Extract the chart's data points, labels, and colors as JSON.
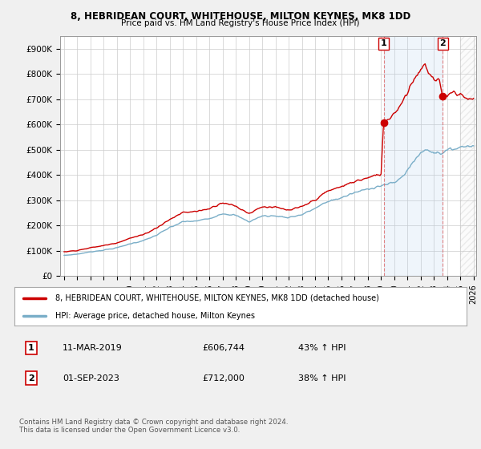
{
  "title": "8, HEBRIDEAN COURT, WHITEHOUSE, MILTON KEYNES, MK8 1DD",
  "subtitle": "Price paid vs. HM Land Registry's House Price Index (HPI)",
  "ylim": [
    0,
    950000
  ],
  "yticks": [
    0,
    100000,
    200000,
    300000,
    400000,
    500000,
    600000,
    700000,
    800000,
    900000
  ],
  "ytick_labels": [
    "£0",
    "£100K",
    "£200K",
    "£300K",
    "£400K",
    "£500K",
    "£600K",
    "£700K",
    "£800K",
    "£900K"
  ],
  "background_color": "#f0f0f0",
  "plot_background": "#ffffff",
  "grid_color": "#cccccc",
  "red_line_color": "#cc0000",
  "blue_line_color": "#7aaec8",
  "purchase1_x": 2019.19,
  "purchase1_y": 606744,
  "purchase2_x": 2023.67,
  "purchase2_y": 712000,
  "legend_line1": "8, HEBRIDEAN COURT, WHITEHOUSE, MILTON KEYNES, MK8 1DD (detached house)",
  "legend_line2": "HPI: Average price, detached house, Milton Keynes",
  "table_row1_num": "1",
  "table_row1_date": "11-MAR-2019",
  "table_row1_price": "£606,744",
  "table_row1_hpi": "43% ↑ HPI",
  "table_row2_num": "2",
  "table_row2_date": "01-SEP-2023",
  "table_row2_price": "£712,000",
  "table_row2_hpi": "38% ↑ HPI",
  "footer": "Contains HM Land Registry data © Crown copyright and database right 2024.\nThis data is licensed under the Open Government Licence v3.0.",
  "xlim_left": 1995.0,
  "xlim_right": 2026.2
}
